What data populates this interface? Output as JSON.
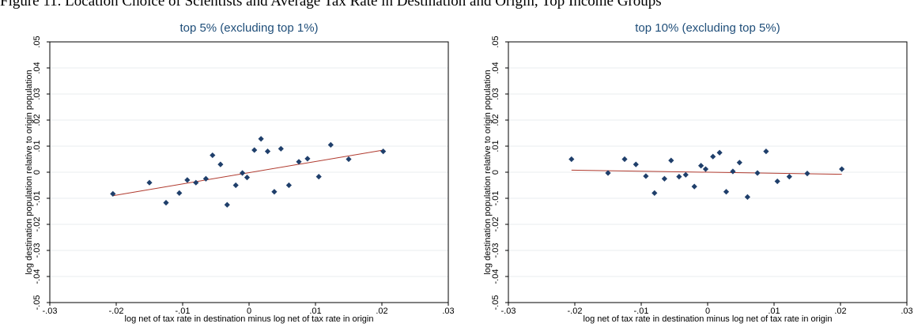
{
  "caption": "Figure 11. Location Choice of Scientists and Average Tax Rate in Destination and Origin, Top Income Groups",
  "chart_data": [
    {
      "type": "scatter",
      "title": "top 5% (excluding top 1%)",
      "xlabel": "log net of tax rate in destination minus log net of tax rate in origin",
      "ylabel": "log destination population relative to origin population",
      "xlim": [
        -0.03,
        0.03
      ],
      "ylim": [
        -0.05,
        0.05
      ],
      "xticks": [
        -0.03,
        -0.02,
        -0.01,
        0,
        0.01,
        0.02,
        0.03
      ],
      "xtick_labels": [
        "-.03",
        "-.02",
        "-.01",
        "0",
        ".01",
        ".02",
        ".03"
      ],
      "yticks": [
        -0.05,
        -0.04,
        -0.03,
        -0.02,
        -0.01,
        0,
        0.01,
        0.02,
        0.03,
        0.04,
        0.05
      ],
      "ytick_labels": [
        "-.05",
        "-.04",
        "-.03",
        "-.02",
        "-.01",
        "0",
        ".01",
        ".02",
        ".03",
        ".04",
        ".05"
      ],
      "grid": true,
      "marker_color": "#1f3f6b",
      "fit_color": "#b03a2e",
      "points": [
        [
          -0.0205,
          -0.0083
        ],
        [
          -0.015,
          -0.004
        ],
        [
          -0.0125,
          -0.0117
        ],
        [
          -0.0105,
          -0.008
        ],
        [
          -0.0093,
          -0.003
        ],
        [
          -0.008,
          -0.004
        ],
        [
          -0.0065,
          -0.0025
        ],
        [
          -0.0055,
          0.0065
        ],
        [
          -0.0043,
          0.003
        ],
        [
          -0.0033,
          -0.0125
        ],
        [
          -0.002,
          -0.005
        ],
        [
          -0.001,
          -0.0003
        ],
        [
          -0.0003,
          -0.002
        ],
        [
          0.0008,
          0.0085
        ],
        [
          0.0018,
          0.0128
        ],
        [
          0.0028,
          0.008
        ],
        [
          0.0038,
          -0.0075
        ],
        [
          0.0048,
          0.009
        ],
        [
          0.006,
          -0.005
        ],
        [
          0.0075,
          0.004
        ],
        [
          0.0088,
          0.0052
        ],
        [
          0.0105,
          -0.0017
        ],
        [
          0.0123,
          0.0105
        ],
        [
          0.015,
          0.005
        ],
        [
          0.0202,
          0.008
        ]
      ],
      "fit_line": [
        [
          -0.0205,
          -0.009
        ],
        [
          0.0202,
          0.0085
        ]
      ]
    },
    {
      "type": "scatter",
      "title": "top 10% (excluding top 5%)",
      "xlabel": "log net of tax rate in destination minus log net of tax rate in origin",
      "ylabel": "log destination population relative to origin population",
      "xlim": [
        -0.03,
        0.03
      ],
      "ylim": [
        -0.05,
        0.05
      ],
      "xticks": [
        -0.03,
        -0.02,
        -0.01,
        0,
        0.01,
        0.02,
        0.03
      ],
      "xtick_labels": [
        "-.03",
        "-.02",
        "-.01",
        "0",
        ".01",
        ".02",
        ".03"
      ],
      "yticks": [
        -0.05,
        -0.04,
        -0.03,
        -0.02,
        -0.01,
        0,
        0.01,
        0.02,
        0.03,
        0.04,
        0.05
      ],
      "ytick_labels": [
        "-.05",
        "-.04",
        "-.03",
        "-.02",
        "-.01",
        "0",
        ".01",
        ".02",
        ".03",
        ".04",
        ".05"
      ],
      "grid": true,
      "marker_color": "#1f3f6b",
      "fit_color": "#b03a2e",
      "points": [
        [
          -0.0205,
          0.005
        ],
        [
          -0.015,
          -0.0003
        ],
        [
          -0.0125,
          0.005
        ],
        [
          -0.0108,
          0.003
        ],
        [
          -0.0093,
          -0.0015
        ],
        [
          -0.008,
          -0.008
        ],
        [
          -0.0065,
          -0.0025
        ],
        [
          -0.0055,
          0.0045
        ],
        [
          -0.0043,
          -0.0017
        ],
        [
          -0.0033,
          -0.001
        ],
        [
          -0.002,
          -0.0055
        ],
        [
          -0.001,
          0.0025
        ],
        [
          -0.0003,
          0.0012
        ],
        [
          0.0008,
          0.006
        ],
        [
          0.0018,
          0.0075
        ],
        [
          0.0028,
          -0.0075
        ],
        [
          0.0038,
          0.0003
        ],
        [
          0.0048,
          0.0037
        ],
        [
          0.006,
          -0.0095
        ],
        [
          0.0075,
          -0.0003
        ],
        [
          0.0088,
          0.008
        ],
        [
          0.0105,
          -0.0035
        ],
        [
          0.0123,
          -0.0017
        ],
        [
          0.015,
          -0.0005
        ],
        [
          0.0202,
          0.0012
        ]
      ],
      "fit_line": [
        [
          -0.0205,
          0.0008
        ],
        [
          0.0202,
          -0.0008
        ]
      ]
    }
  ]
}
